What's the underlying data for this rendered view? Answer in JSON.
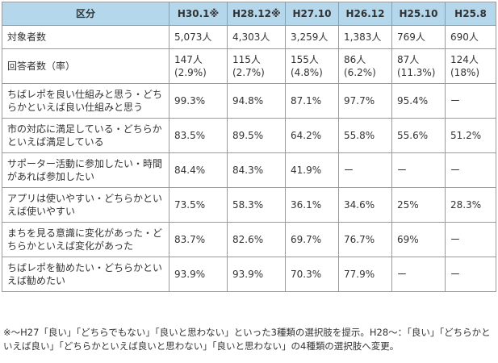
{
  "table": {
    "headers": [
      "区分",
      "H30.1※",
      "H28.12※",
      "H27.10",
      "H26.12",
      "H25.10",
      "H25.8"
    ],
    "rows": [
      {
        "label": "対象者数",
        "values": [
          "5,073人",
          "4,303人",
          "3,259人",
          "1,383人",
          "769人",
          "690人"
        ]
      },
      {
        "label": "回答者数（率）",
        "values": [
          "147人\n(2.9%)",
          "115人\n(2.7%)",
          "155人\n(4.8%)",
          "86人\n(6.2%)",
          "87人\n(11.3%)",
          "124人\n(18%)"
        ]
      },
      {
        "label": "ちばレポを良い仕組みと思う・どちらかといえば良い仕組みと思う",
        "values": [
          "99.3%",
          "94.8%",
          "87.1%",
          "97.7%",
          "95.4%",
          "ー"
        ]
      },
      {
        "label": "市の対応に満足している・どちらかといえば満足している",
        "values": [
          "83.5%",
          "89.5%",
          "64.2%",
          "55.8%",
          "55.6%",
          "51.2%"
        ]
      },
      {
        "label": "サポーター活動に参加したい・時間があれば参加したい",
        "values": [
          "84.4%",
          "84.3%",
          "41.9%",
          "ー",
          "ー",
          "ー"
        ]
      },
      {
        "label": "アプリは使いやすい・どちらかといえば使いやすい",
        "values": [
          "73.5%",
          "58.3%",
          "36.1%",
          "34.6%",
          "25%",
          "28.3%"
        ]
      },
      {
        "label": "まちを見る意識に変化があった・どちらかといえば変化があった",
        "values": [
          "83.7%",
          "82.6%",
          "69.7%",
          "76.7%",
          "69%",
          "ー"
        ]
      },
      {
        "label": "ちばレポを勧めたい・どちらかといえば勧めたい",
        "values": [
          "93.9%",
          "93.9%",
          "70.3%",
          "77.9%",
          "ー",
          "ー"
        ]
      }
    ]
  },
  "note": "※〜H27「良い」「どちらでもない」「良いと思わない」といった3種類の選択肢を提示。H28〜：「良い」「どちらかといえば良い」「どちらかといえば良いと思わない」「良いと思わない」の4種類の選択肢へ変更。"
}
